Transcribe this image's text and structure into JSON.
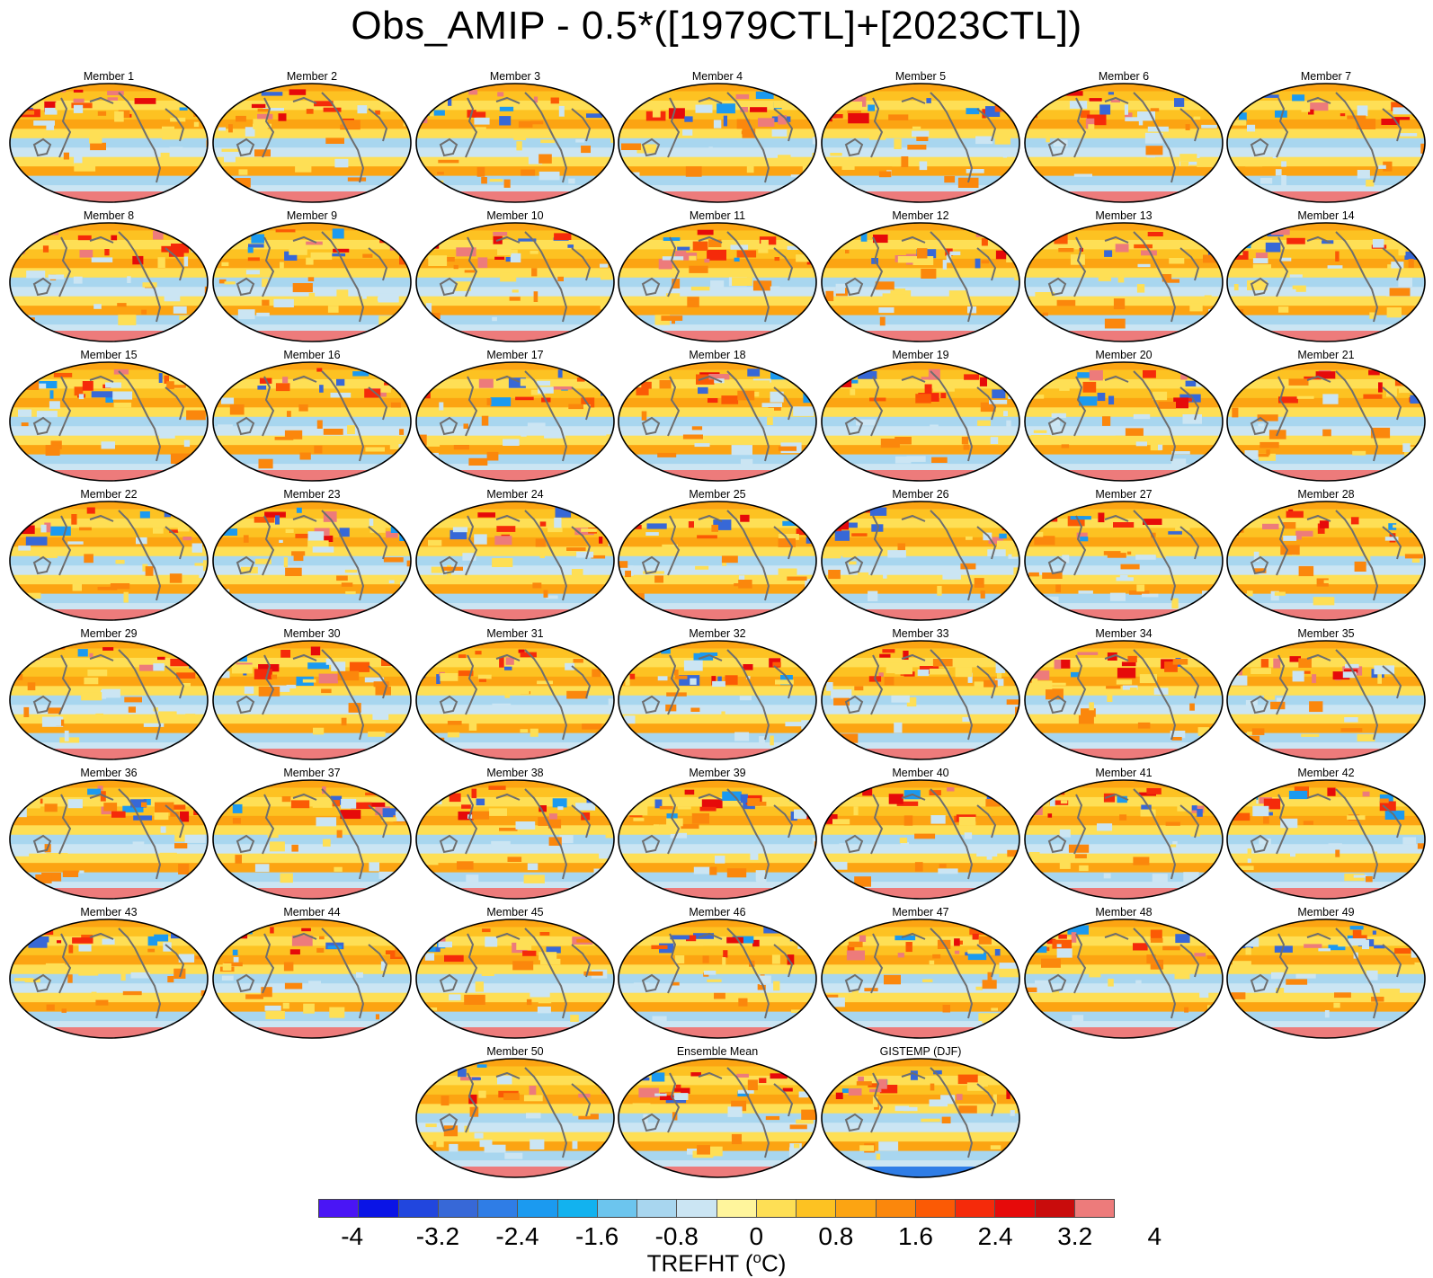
{
  "title": "Obs_AMIP - 0.5*([1979CTL]+[2023CTL])",
  "panels": [
    "Member 1",
    "Member 2",
    "Member 3",
    "Member 4",
    "Member 5",
    "Member 6",
    "Member 7",
    "Member 8",
    "Member 9",
    "Member 10",
    "Member 11",
    "Member 12",
    "Member 13",
    "Member 14",
    "Member 15",
    "Member 16",
    "Member 17",
    "Member 18",
    "Member 19",
    "Member 20",
    "Member 21",
    "Member 22",
    "Member 23",
    "Member 24",
    "Member 25",
    "Member 26",
    "Member 27",
    "Member 28",
    "Member 29",
    "Member 30",
    "Member 31",
    "Member 32",
    "Member 33",
    "Member 34",
    "Member 35",
    "Member 36",
    "Member 37",
    "Member 38",
    "Member 39",
    "Member 40",
    "Member 41",
    "Member 42",
    "Member 43",
    "Member 44",
    "Member 45",
    "Member 46",
    "Member 47",
    "Member 48",
    "Member 49",
    "Member 50",
    "Ensemble Mean",
    "GISTEMP (DJF)"
  ],
  "colorbar": {
    "colors": [
      "#4a15f5",
      "#0a14e6",
      "#2146de",
      "#3768d7",
      "#2f7de6",
      "#1b9af0",
      "#12b2ef",
      "#6cc5ee",
      "#a8d6ef",
      "#cbe5f3",
      "#fff59c",
      "#fedf55",
      "#fdc222",
      "#fca412",
      "#fb870c",
      "#fb5a05",
      "#f52a0a",
      "#e60a0a",
      "#c90c0c",
      "#ed7b7b"
    ],
    "tick_labels": [
      "-4",
      "-3.2",
      "-2.4",
      "-1.6",
      "-0.8",
      "0",
      "0.8",
      "1.6",
      "2.4",
      "3.2",
      "4"
    ],
    "label_main": "TREFHT (",
    "label_sup": "o",
    "label_end": "C)"
  }
}
